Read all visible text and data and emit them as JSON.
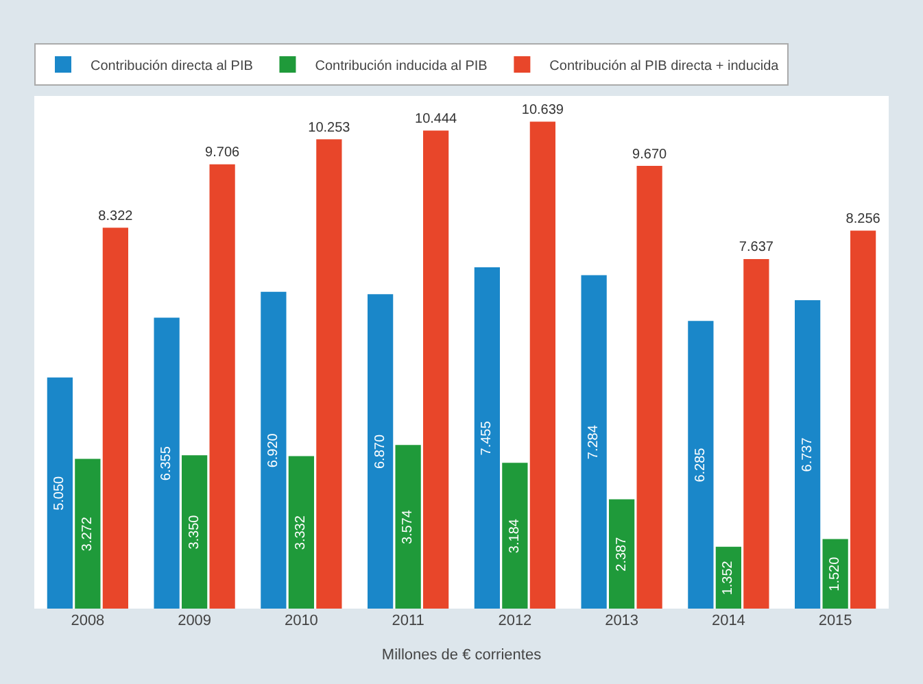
{
  "chart_data": {
    "type": "bar",
    "xlabel": "Millones de € corrientes",
    "categories": [
      "2008",
      "2009",
      "2010",
      "2011",
      "2012",
      "2013",
      "2014",
      "2015"
    ],
    "series": [
      {
        "name": "Contribución directa al PIB",
        "color": "#1a87c9",
        "values": [
          5050,
          6355,
          6920,
          6870,
          7455,
          7284,
          6285,
          6737
        ],
        "value_labels": [
          "5.050",
          "6.355",
          "6.920",
          "6.870",
          "7.455",
          "7.284",
          "6.285",
          "6.737"
        ]
      },
      {
        "name": "Contribución inducida al PIB",
        "color": "#1f9a3a",
        "values": [
          3272,
          3350,
          3332,
          3574,
          3184,
          2387,
          1352,
          1520
        ],
        "value_labels": [
          "3.272",
          "3.350",
          "3.332",
          "3.574",
          "3.184",
          "2.387",
          "1.352",
          "1.520"
        ]
      },
      {
        "name": "Contribución al PIB directa + inducida",
        "color": "#e8462a",
        "values": [
          8322,
          9706,
          10253,
          10444,
          10639,
          9670,
          7637,
          8256
        ],
        "value_labels": [
          "8.322",
          "9.706",
          "10.253",
          "10.444",
          "10.639",
          "9.670",
          "7.637",
          "8.256"
        ]
      }
    ],
    "legend": "top",
    "tick_labels": "x"
  }
}
